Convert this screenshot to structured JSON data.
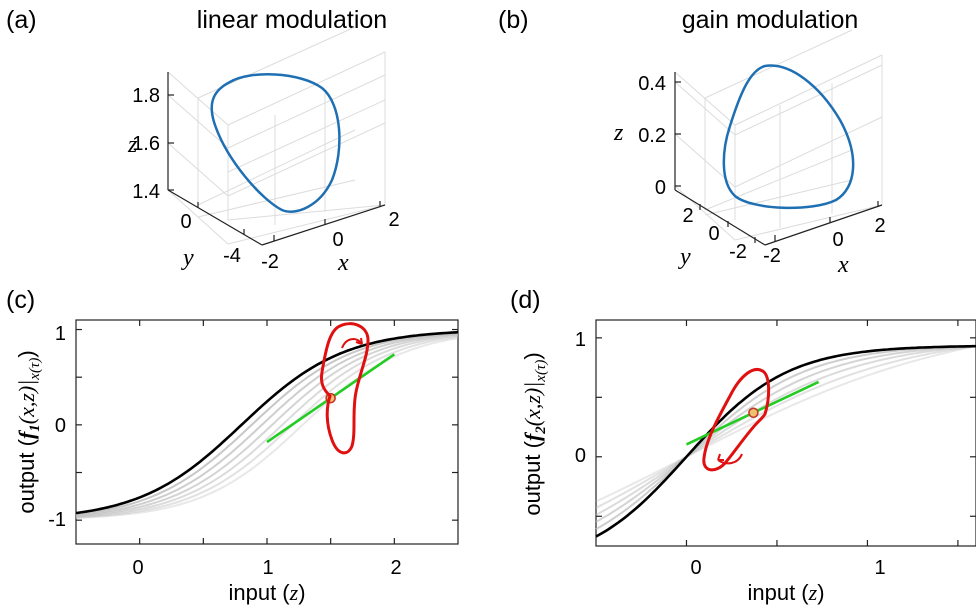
{
  "panels": {
    "a": {
      "letter": "(a)",
      "title": "linear modulation",
      "axis_z_label": "z",
      "axis_y_label": "y",
      "axis_x_label": "x",
      "z_ticks": [
        "1.8",
        "1.6",
        "1.4"
      ],
      "y_ticks": [
        "0",
        "-4"
      ],
      "x_ticks": [
        "-2",
        "0",
        "2"
      ]
    },
    "b": {
      "letter": "(b)",
      "title": "gain modulation",
      "axis_z_label": "z",
      "axis_y_label": "y",
      "axis_x_label": "x",
      "z_ticks": [
        "0.4",
        "0.2",
        "0"
      ],
      "y_ticks": [
        "2",
        "0",
        "-2"
      ],
      "x_ticks": [
        "-2",
        "0",
        "2"
      ]
    },
    "c": {
      "letter": "(c)",
      "ylabel_prefix": "output (",
      "ylabel_f": "f",
      "ylabel_sub": "1",
      "ylabel_args": "(x,z)|",
      "ylabel_eval": "x(τ)",
      "ylabel_suffix": ")",
      "xlabel_prefix": "input (",
      "xlabel_var": "z",
      "xlabel_suffix": ")",
      "x_ticks": [
        "0",
        "1",
        "2"
      ],
      "y_ticks": [
        "1",
        "0",
        "-1"
      ]
    },
    "d": {
      "letter": "(d)",
      "ylabel_prefix": "output (",
      "ylabel_f": "f",
      "ylabel_sub": "2",
      "ylabel_args": "(x,z)|",
      "ylabel_eval": "x(τ)",
      "ylabel_suffix": ")",
      "xlabel_prefix": "input (",
      "xlabel_var": "z",
      "xlabel_suffix": ")",
      "x_ticks": [
        "0",
        "1"
      ],
      "y_ticks": [
        "1",
        "0"
      ]
    }
  },
  "colors": {
    "limit_cycle": "#1f6fb3",
    "main_curve": "#000000",
    "shadow_curve": "#bdbdbd",
    "tangent": "#22cc22",
    "loop": "#e01010",
    "point": "#c0392b"
  },
  "chart_data": [
    {
      "type": "line",
      "panel": "a",
      "kind": "3d-trajectory",
      "zlim": [
        1.35,
        1.9
      ],
      "xlim": [
        -2,
        2
      ],
      "ylim": [
        -6,
        2
      ],
      "series": [
        {
          "values": []
        }
      ]
    },
    {
      "type": "line",
      "panel": "b",
      "kind": "3d-trajectory",
      "zlim": [
        0,
        0.45
      ],
      "xlim": [
        -2,
        2
      ],
      "ylim": [
        -2,
        2
      ],
      "series": [
        {
          "values": []
        }
      ]
    },
    {
      "type": "line",
      "panel": "c",
      "xlim": [
        -0.5,
        2.5
      ],
      "ylim": [
        -1.25,
        1.1
      ],
      "main_curve": {
        "function": "tanh(z - 0.8)"
      },
      "shadow_shifts": [
        0.08,
        0.16,
        0.24,
        0.32,
        0.4,
        0.48
      ],
      "operating_point": {
        "x": 1.5,
        "y": 0.28
      },
      "tangent_x_range": [
        1.0,
        2.0
      ]
    },
    {
      "type": "line",
      "panel": "d",
      "xlim": [
        -0.5,
        1.6
      ],
      "ylim": [
        -0.75,
        1.15
      ],
      "main_curve": {
        "function": "tanh(1.8*z)*1.0 scaled"
      },
      "shadow_gains": [
        0.85,
        0.72,
        0.6,
        0.48,
        0.36
      ],
      "operating_point": {
        "x": 0.37,
        "y": 0.37
      },
      "tangent_x_range": [
        0.0,
        0.73
      ]
    }
  ]
}
